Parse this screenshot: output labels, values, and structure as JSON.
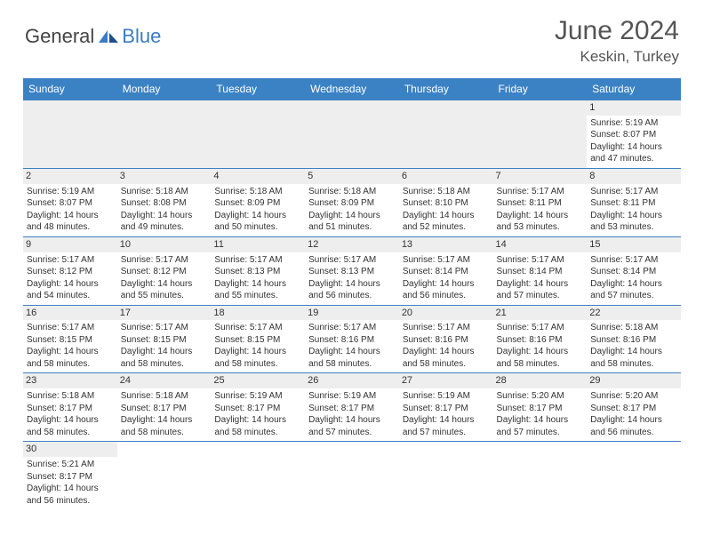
{
  "logo": {
    "text1": "General",
    "text2": "Blue"
  },
  "title": "June 2024",
  "location": "Keskin, Turkey",
  "colors": {
    "header_bg": "#3b82c4",
    "header_text": "#ffffff",
    "day_bg": "#eeeeee",
    "border": "#3b82c4",
    "logo_gray": "#444444",
    "logo_blue": "#3b7bc4"
  },
  "day_headers": [
    "Sunday",
    "Monday",
    "Tuesday",
    "Wednesday",
    "Thursday",
    "Friday",
    "Saturday"
  ],
  "weeks": [
    [
      null,
      null,
      null,
      null,
      null,
      null,
      {
        "n": "1",
        "sr": "5:19 AM",
        "ss": "8:07 PM",
        "dl": "14 hours and 47 minutes."
      }
    ],
    [
      {
        "n": "2",
        "sr": "5:19 AM",
        "ss": "8:07 PM",
        "dl": "14 hours and 48 minutes."
      },
      {
        "n": "3",
        "sr": "5:18 AM",
        "ss": "8:08 PM",
        "dl": "14 hours and 49 minutes."
      },
      {
        "n": "4",
        "sr": "5:18 AM",
        "ss": "8:09 PM",
        "dl": "14 hours and 50 minutes."
      },
      {
        "n": "5",
        "sr": "5:18 AM",
        "ss": "8:09 PM",
        "dl": "14 hours and 51 minutes."
      },
      {
        "n": "6",
        "sr": "5:18 AM",
        "ss": "8:10 PM",
        "dl": "14 hours and 52 minutes."
      },
      {
        "n": "7",
        "sr": "5:17 AM",
        "ss": "8:11 PM",
        "dl": "14 hours and 53 minutes."
      },
      {
        "n": "8",
        "sr": "5:17 AM",
        "ss": "8:11 PM",
        "dl": "14 hours and 53 minutes."
      }
    ],
    [
      {
        "n": "9",
        "sr": "5:17 AM",
        "ss": "8:12 PM",
        "dl": "14 hours and 54 minutes."
      },
      {
        "n": "10",
        "sr": "5:17 AM",
        "ss": "8:12 PM",
        "dl": "14 hours and 55 minutes."
      },
      {
        "n": "11",
        "sr": "5:17 AM",
        "ss": "8:13 PM",
        "dl": "14 hours and 55 minutes."
      },
      {
        "n": "12",
        "sr": "5:17 AM",
        "ss": "8:13 PM",
        "dl": "14 hours and 56 minutes."
      },
      {
        "n": "13",
        "sr": "5:17 AM",
        "ss": "8:14 PM",
        "dl": "14 hours and 56 minutes."
      },
      {
        "n": "14",
        "sr": "5:17 AM",
        "ss": "8:14 PM",
        "dl": "14 hours and 57 minutes."
      },
      {
        "n": "15",
        "sr": "5:17 AM",
        "ss": "8:14 PM",
        "dl": "14 hours and 57 minutes."
      }
    ],
    [
      {
        "n": "16",
        "sr": "5:17 AM",
        "ss": "8:15 PM",
        "dl": "14 hours and 58 minutes."
      },
      {
        "n": "17",
        "sr": "5:17 AM",
        "ss": "8:15 PM",
        "dl": "14 hours and 58 minutes."
      },
      {
        "n": "18",
        "sr": "5:17 AM",
        "ss": "8:15 PM",
        "dl": "14 hours and 58 minutes."
      },
      {
        "n": "19",
        "sr": "5:17 AM",
        "ss": "8:16 PM",
        "dl": "14 hours and 58 minutes."
      },
      {
        "n": "20",
        "sr": "5:17 AM",
        "ss": "8:16 PM",
        "dl": "14 hours and 58 minutes."
      },
      {
        "n": "21",
        "sr": "5:17 AM",
        "ss": "8:16 PM",
        "dl": "14 hours and 58 minutes."
      },
      {
        "n": "22",
        "sr": "5:18 AM",
        "ss": "8:16 PM",
        "dl": "14 hours and 58 minutes."
      }
    ],
    [
      {
        "n": "23",
        "sr": "5:18 AM",
        "ss": "8:17 PM",
        "dl": "14 hours and 58 minutes."
      },
      {
        "n": "24",
        "sr": "5:18 AM",
        "ss": "8:17 PM",
        "dl": "14 hours and 58 minutes."
      },
      {
        "n": "25",
        "sr": "5:19 AM",
        "ss": "8:17 PM",
        "dl": "14 hours and 58 minutes."
      },
      {
        "n": "26",
        "sr": "5:19 AM",
        "ss": "8:17 PM",
        "dl": "14 hours and 57 minutes."
      },
      {
        "n": "27",
        "sr": "5:19 AM",
        "ss": "8:17 PM",
        "dl": "14 hours and 57 minutes."
      },
      {
        "n": "28",
        "sr": "5:20 AM",
        "ss": "8:17 PM",
        "dl": "14 hours and 57 minutes."
      },
      {
        "n": "29",
        "sr": "5:20 AM",
        "ss": "8:17 PM",
        "dl": "14 hours and 56 minutes."
      }
    ],
    [
      {
        "n": "30",
        "sr": "5:21 AM",
        "ss": "8:17 PM",
        "dl": "14 hours and 56 minutes."
      },
      null,
      null,
      null,
      null,
      null,
      null
    ]
  ],
  "labels": {
    "sunrise": "Sunrise:",
    "sunset": "Sunset:",
    "daylight": "Daylight:"
  }
}
